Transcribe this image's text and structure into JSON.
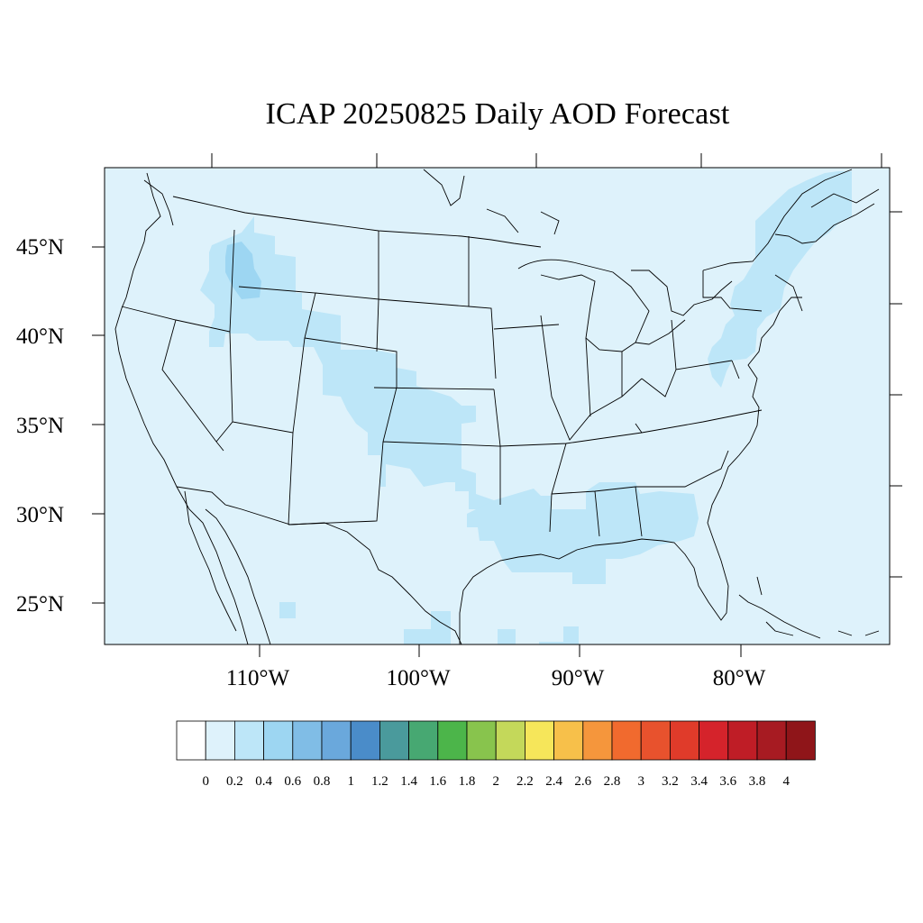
{
  "title": "ICAP 20250825 Daily AOD Forecast",
  "map": {
    "lat_labels": [
      "45°N",
      "40°N",
      "35°N",
      "30°N",
      "25°N"
    ],
    "lat_values": [
      45,
      40,
      35,
      30,
      25
    ],
    "lon_labels": [
      "110°W",
      "100°W",
      "90°W",
      "80°W"
    ],
    "lon_values": [
      -110,
      -100,
      -90,
      -80
    ],
    "extent": {
      "lon_min": -119,
      "lon_max": -70,
      "lat_min": 22.5,
      "lat_max": 49.5
    },
    "background_aod_bin": "0–0.2",
    "aod_regions": [
      {
        "name": "Idaho / western Montana",
        "aod_bin": "0.2–0.4"
      },
      {
        "name": "central Idaho core",
        "aod_bin": "0.4–0.6"
      },
      {
        "name": "Wyoming / Colorado / Kansas / Oklahoma corridor",
        "aod_bin": "0.2–0.4"
      },
      {
        "name": "Texas / Louisiana / Gulf Coast",
        "aod_bin": "0.2–0.4"
      },
      {
        "name": "Alabama / Georgia",
        "aod_bin": "0.2–0.4"
      },
      {
        "name": "New England / New York / Pennsylvania",
        "aod_bin": "0.2–0.4"
      }
    ]
  },
  "colorbar": {
    "labels": [
      "0",
      "0.2",
      "0.4",
      "0.6",
      "0.8",
      "1",
      "1.2",
      "1.4",
      "1.6",
      "1.8",
      "2",
      "2.2",
      "2.4",
      "2.6",
      "2.8",
      "3",
      "3.2",
      "3.4",
      "3.6",
      "3.8",
      "4"
    ],
    "colors": [
      "#ffffff",
      "#def2fb",
      "#bde6f8",
      "#9dd6f2",
      "#80bde6",
      "#6aa8dc",
      "#4a8cc9",
      "#4a9a9c",
      "#47a872",
      "#4cb54a",
      "#88c44d",
      "#c4d85a",
      "#f6e65a",
      "#f7c04a",
      "#f5963c",
      "#f16a2e",
      "#e8522d",
      "#e03b2a",
      "#d5232b",
      "#bf1d26",
      "#a71b22",
      "#8f1519"
    ]
  }
}
